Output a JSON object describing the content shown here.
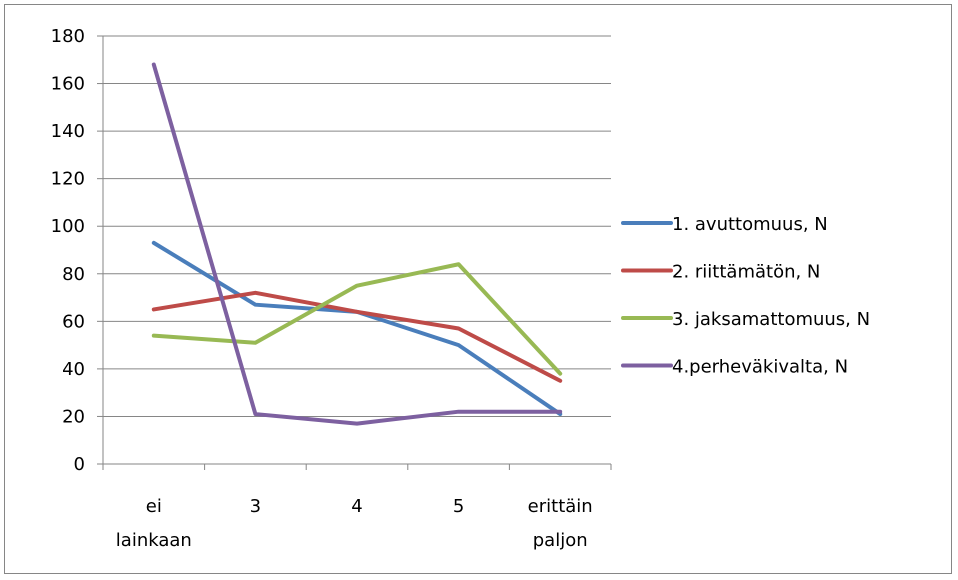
{
  "chart_data": {
    "type": "line",
    "title": "",
    "xlabel": "",
    "ylabel": "",
    "categories": [
      [
        "ei",
        "lainkaan"
      ],
      [
        "3"
      ],
      [
        "4"
      ],
      [
        "5"
      ],
      [
        "erittäin",
        "paljon"
      ]
    ],
    "ylim": [
      0,
      180
    ],
    "yticks": [
      "0",
      "20",
      "40",
      "60",
      "80",
      "100",
      "120",
      "140",
      "160",
      "180"
    ],
    "grid": true,
    "legend_position": "right",
    "series": [
      {
        "name": "1. avuttomuus, N",
        "color": "#4a7ebb",
        "values": [
          93,
          67,
          64,
          50,
          21
        ]
      },
      {
        "name": "2. riittämätön, N",
        "color": "#be4b48",
        "values": [
          65,
          72,
          64,
          57,
          35
        ]
      },
      {
        "name": "3. jaksamattomuus, N",
        "color": "#98b954",
        "values": [
          54,
          51,
          75,
          84,
          38
        ]
      },
      {
        "name": "4.perheväkivalta, N",
        "color": "#7d60a0",
        "values": [
          168,
          21,
          17,
          22,
          22
        ]
      }
    ]
  }
}
